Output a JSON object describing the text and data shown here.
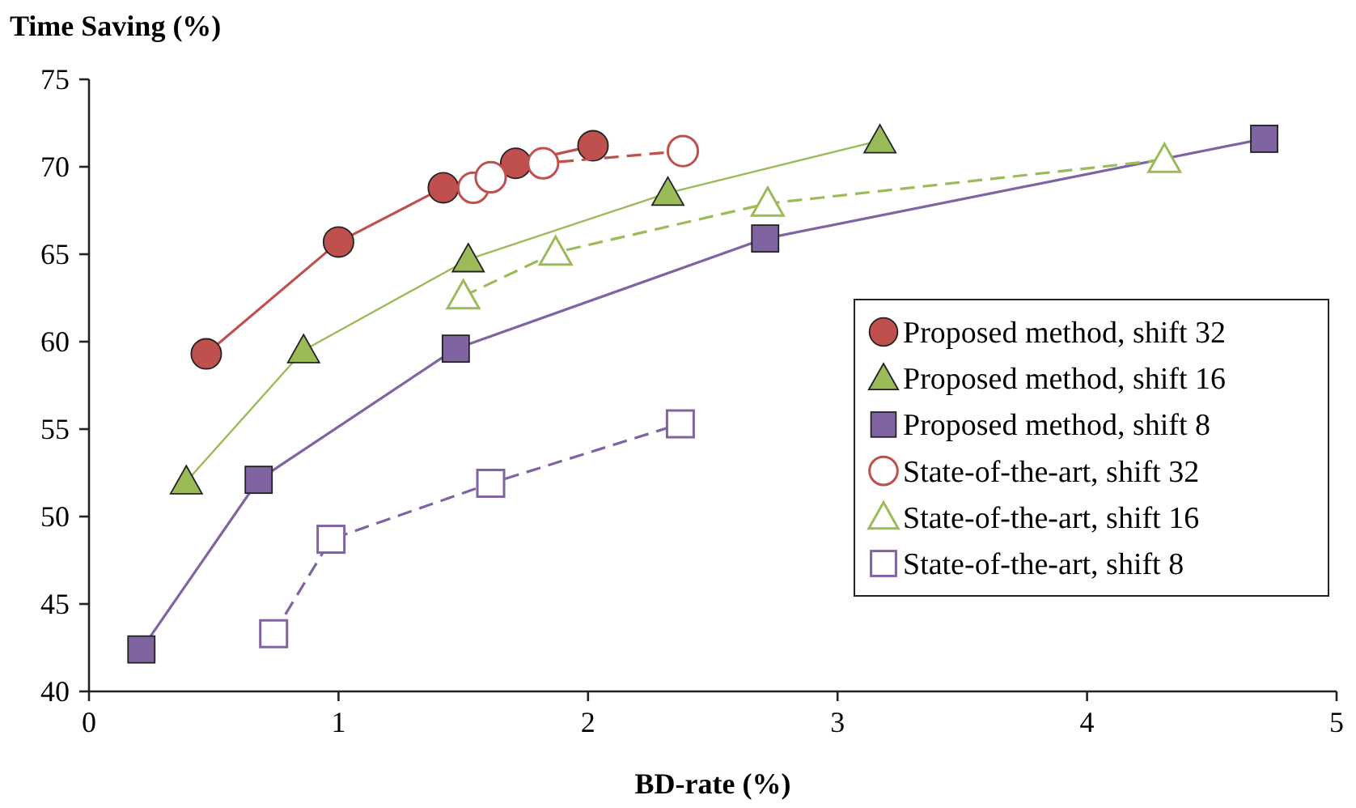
{
  "chart_data": {
    "type": "line",
    "xlabel": "BD-rate (%)",
    "ylabel": "Time Saving (%)",
    "xlim": [
      0,
      5
    ],
    "xticks": [
      0,
      1,
      2,
      3,
      4,
      5
    ],
    "ylim": [
      40,
      75
    ],
    "yticks": [
      40,
      45,
      50,
      55,
      60,
      65,
      70,
      75
    ],
    "grid": false,
    "legend": "right",
    "series": [
      {
        "name": "Proposed method, shift 32",
        "color": "#c0504d",
        "marker": "circle",
        "line_style": "solid",
        "x": [
          0.47,
          1.0,
          1.42,
          1.71,
          2.02
        ],
        "values": [
          59.3,
          65.7,
          68.8,
          70.2,
          71.2
        ]
      },
      {
        "name": "Proposed method, shift 16",
        "color": "#9bbb59",
        "marker": "triangle",
        "line_style": "solid",
        "x": [
          0.39,
          0.86,
          1.52,
          2.32,
          3.17
        ],
        "values": [
          52.0,
          59.5,
          64.7,
          68.5,
          71.5
        ]
      },
      {
        "name": "Proposed method, shift 8",
        "color": "#8064a2",
        "marker": "square",
        "line_style": "solid",
        "x": [
          0.21,
          0.68,
          1.47,
          2.71,
          4.71
        ],
        "values": [
          42.4,
          52.1,
          59.6,
          65.9,
          71.6
        ]
      },
      {
        "name": "State-of-the-art, shift 32",
        "color": "#c0504d",
        "marker": "circle",
        "line_style": "dashed",
        "x": [
          1.54,
          1.61,
          1.82,
          2.38
        ],
        "values": [
          68.8,
          69.4,
          70.2,
          70.9
        ]
      },
      {
        "name": "State-of-the-art, shift 16",
        "color": "#9bbb59",
        "marker": "triangle",
        "line_style": "dashed",
        "x": [
          1.5,
          1.87,
          2.72,
          4.31
        ],
        "values": [
          62.6,
          65.1,
          67.9,
          70.4
        ]
      },
      {
        "name": "State-of-the-art, shift 8",
        "color": "#8064a2",
        "marker": "square",
        "line_style": "dashed",
        "x": [
          0.74,
          0.97,
          1.61,
          2.37
        ],
        "values": [
          43.3,
          48.7,
          51.9,
          55.3
        ]
      }
    ]
  }
}
